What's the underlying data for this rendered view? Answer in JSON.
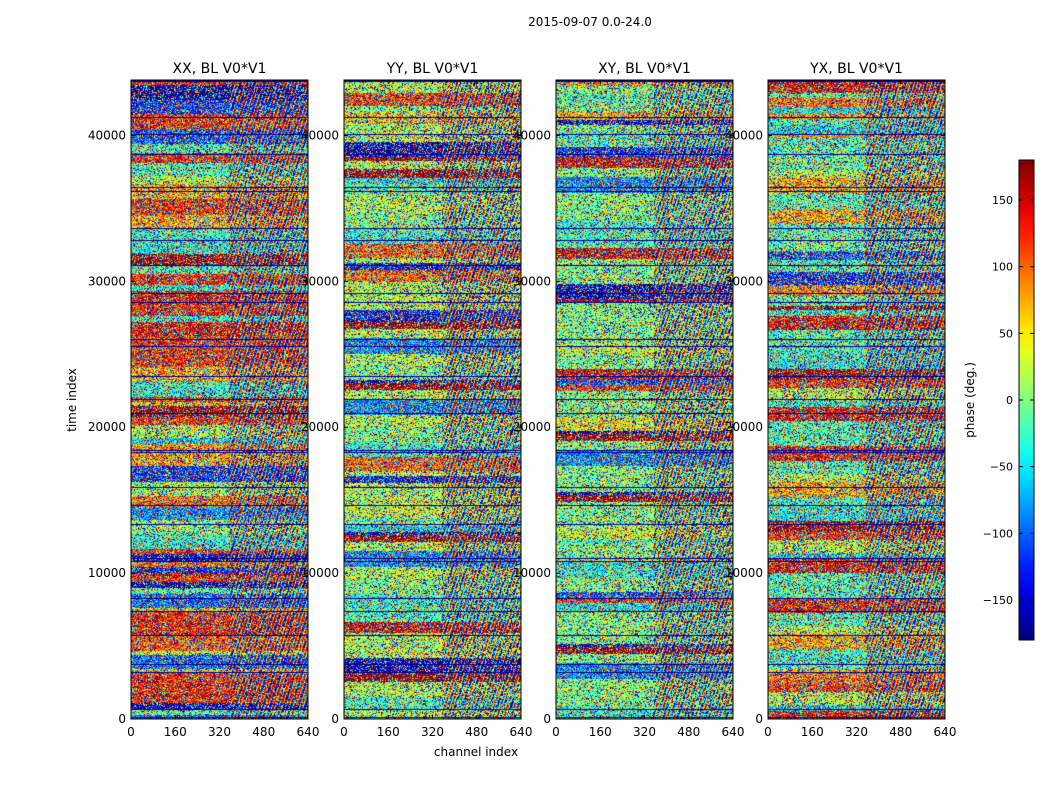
{
  "chart_data": {
    "type": "heatmap",
    "suptitle": "2015-09-07 0.0-24.0",
    "xlabel": "channel index",
    "ylabel": "time index",
    "xlim": [
      0,
      640
    ],
    "ylim": [
      0,
      43800
    ],
    "x_ticks": [
      0,
      160,
      320,
      480,
      640
    ],
    "y_ticks": [
      0,
      10000,
      20000,
      30000,
      40000
    ],
    "colorscale": "jet",
    "colorbar": {
      "label": "phase (deg.)",
      "range": [
        -180,
        180
      ],
      "ticks": [
        150,
        100,
        50,
        0,
        -50,
        -100,
        -150
      ],
      "tick_labels": [
        "150",
        "100",
        "50",
        "0",
        "−50",
        "−100",
        "−150"
      ]
    },
    "panels": [
      {
        "title": "XX, BL V0*V1",
        "polarization": "XX"
      },
      {
        "title": "YY, BL V0*V1",
        "polarization": "YY"
      },
      {
        "title": "XY, BL V0*V1",
        "polarization": "XY"
      },
      {
        "title": "YX, BL V0*V1",
        "polarization": "YX"
      }
    ]
  }
}
